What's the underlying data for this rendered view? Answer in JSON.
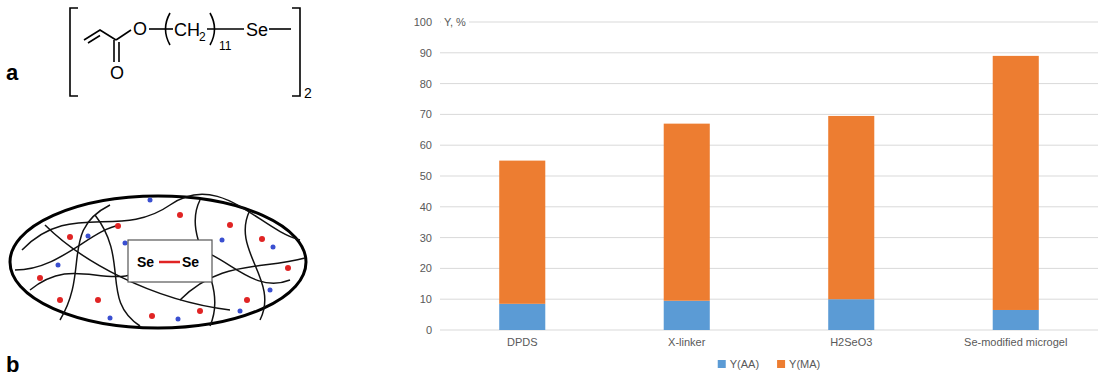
{
  "chart_data": {
    "type": "bar",
    "stacked": true,
    "ylabel": "Y, %",
    "categories": [
      "DPDS",
      "X-linker",
      "H2SeO3",
      "Se-modified microgel"
    ],
    "series": [
      {
        "name": "Y(AA)",
        "color": "#5b9bd5",
        "values": [
          8.5,
          9.5,
          10,
          6.5
        ]
      },
      {
        "name": "Y(MA)",
        "color": "#ed7d31",
        "values": [
          46.5,
          57.5,
          59.5,
          82.5
        ]
      }
    ],
    "ylim": [
      0,
      100
    ],
    "yticks": [
      0,
      10,
      20,
      30,
      40,
      50,
      60,
      70,
      80,
      90,
      100
    ],
    "grid": true,
    "legend": "bottom"
  },
  "figure": {
    "panel_labels": [
      "a",
      "b"
    ],
    "structure": {
      "carbonyl_oxygen": "O",
      "ester_oxygen": "O",
      "repeat_unit": "CH",
      "repeat_subscript": "2",
      "repeat_count": "11",
      "selenium": "Se",
      "multiplier": "2"
    },
    "microgel": {
      "left_atom": "Se",
      "right_atom": "Se"
    }
  }
}
